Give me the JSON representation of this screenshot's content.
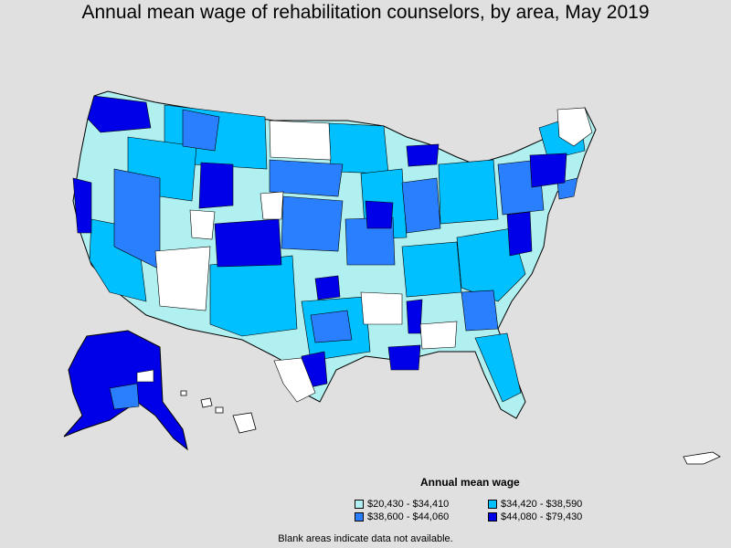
{
  "title": "Annual mean wage of rehabilitation counselors, by area, May 2019",
  "legend": {
    "title": "Annual mean wage",
    "items": [
      {
        "label": "$20,430 - $34,410",
        "color": "#b0f0f0"
      },
      {
        "label": "$34,420 - $38,590",
        "color": "#00c0ff"
      },
      {
        "label": "$38,600 - $44,060",
        "color": "#2a7fff"
      },
      {
        "label": "$44,080 - $79,430",
        "color": "#0000e8"
      }
    ]
  },
  "note": "Blank areas indicate data not available.",
  "colors": {
    "background": "#e0e0e0",
    "blank": "#ffffff",
    "border": "#000000"
  }
}
